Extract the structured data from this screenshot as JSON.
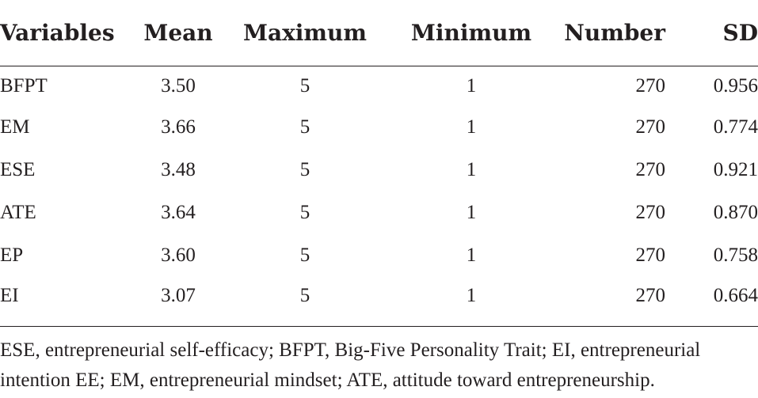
{
  "table": {
    "headers": [
      "Variables",
      "Mean",
      "Maximum",
      "Minimum",
      "Number",
      "SD"
    ],
    "rows": [
      [
        "BFPT",
        "3.50",
        "5",
        "1",
        "270",
        "0.956"
      ],
      [
        "EM",
        "3.66",
        "5",
        "1",
        "270",
        "0.774"
      ],
      [
        "ESE",
        "3.48",
        "5",
        "1",
        "270",
        "0.921"
      ],
      [
        "ATE",
        "3.64",
        "5",
        "1",
        "270",
        "0.870"
      ],
      [
        "EP",
        "3.60",
        "5",
        "1",
        "270",
        "0.758"
      ],
      [
        "EI",
        "3.07",
        "5",
        "1",
        "270",
        "0.664"
      ]
    ]
  },
  "footnote": "ESE, entrepreneurial self-efficacy; BFPT, Big-Five Personality Trait; EI, entrepreneurial intention EE; EM, entrepreneurial mindset; ATE, attitude toward entrepreneurship."
}
